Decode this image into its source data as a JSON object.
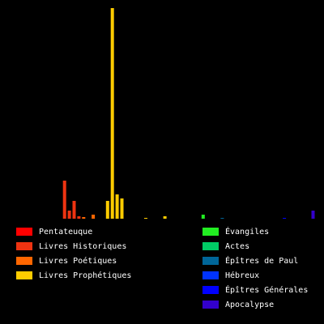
{
  "chart_data": {
    "type": "bar",
    "ylim": [
      0,
      260
    ],
    "legend": "bottom",
    "series": [
      {
        "name": "Pentateuque",
        "color": "#ff0000",
        "values": [
          0,
          0,
          0,
          0,
          0
        ]
      },
      {
        "name": "Livres Historiques",
        "color": "#ee3311",
        "values": [
          0,
          0,
          0,
          0,
          0,
          0,
          0,
          0,
          47,
          10,
          22,
          3
        ]
      },
      {
        "name": "Livres Poétiques",
        "color": "#ff6600",
        "values": [
          2,
          0,
          5,
          0,
          0
        ]
      },
      {
        "name": "Livres Prophétiques",
        "color": "#ffcc00",
        "values": [
          22,
          260,
          30,
          25,
          0,
          0,
          0,
          0,
          1,
          0,
          0,
          0,
          3,
          0,
          0,
          0,
          0
        ]
      },
      {
        "name": "Évangiles",
        "color": "#22ee22",
        "values": [
          0,
          0,
          0,
          5
        ]
      },
      {
        "name": "Actes",
        "color": "#00cc66",
        "values": [
          0
        ]
      },
      {
        "name": "Épîtres de Paul",
        "color": "#006699",
        "values": [
          0,
          0,
          1,
          0,
          0,
          0,
          0,
          0,
          0,
          0,
          0,
          0,
          0
        ]
      },
      {
        "name": "Hébreux",
        "color": "#0033ff",
        "values": [
          0
        ]
      },
      {
        "name": "Épîtres Générales",
        "color": "#0000ff",
        "values": [
          0,
          1,
          0,
          0,
          0,
          0,
          0
        ]
      },
      {
        "name": "Apocalypse",
        "color": "#3300cc",
        "values": [
          10
        ]
      }
    ]
  }
}
